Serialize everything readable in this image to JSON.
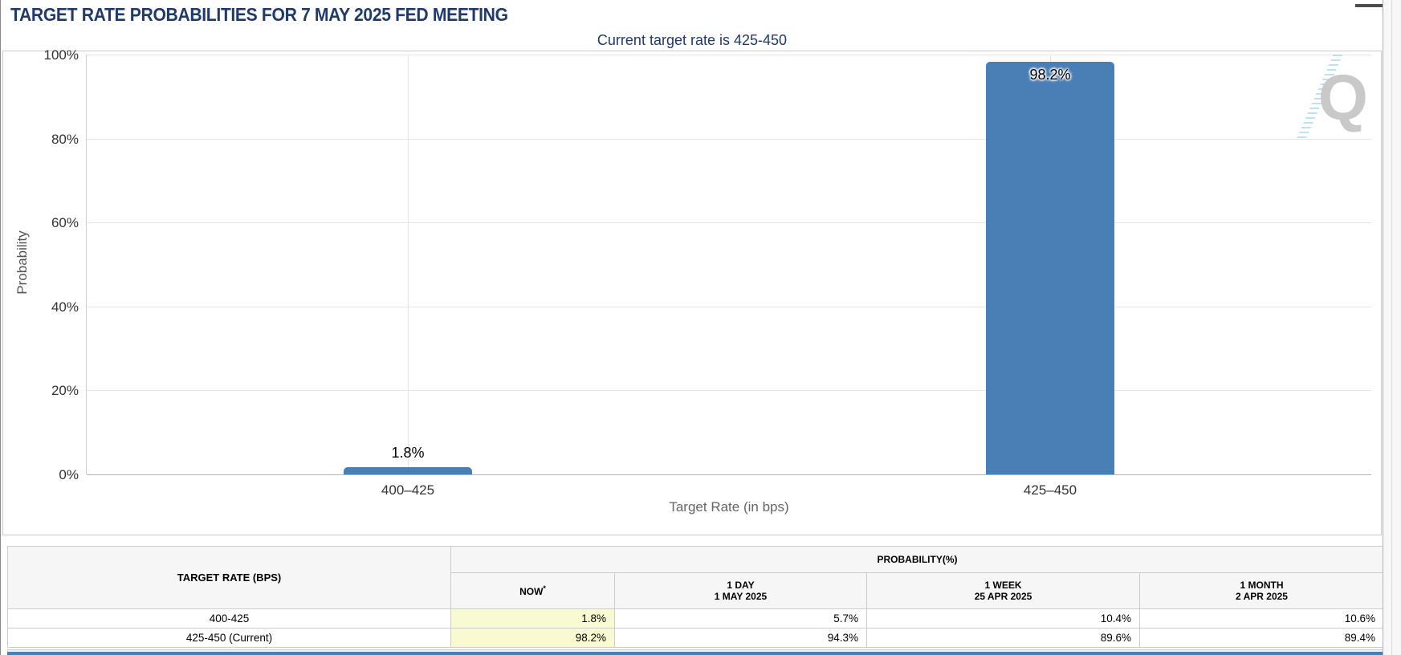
{
  "header": {
    "title": "TARGET RATE PROBABILITIES FOR 7 MAY 2025 FED MEETING"
  },
  "icons": {
    "menu": "hamburger-menu-icon",
    "watermark": "quikstrike-q-watermark"
  },
  "colors": {
    "bar_blue": "#4a7fb6",
    "title_navy": "#203a6d",
    "now_cell_yellow": "#fafad2",
    "header_gray": "#f6f6f6",
    "bottom_bar_blue": "#4a7fb6"
  },
  "chart_data": {
    "type": "bar",
    "subtitle": "Current target rate is 425-450",
    "categories": [
      "400–425",
      "425–450"
    ],
    "values": [
      1.8,
      98.2
    ],
    "value_labels": [
      "1.8%",
      "98.2%"
    ],
    "xlabel": "Target Rate (in bps)",
    "ylabel": "Probability",
    "ylim": [
      0,
      100
    ],
    "ytick_step": 20,
    "ytick_labels": [
      "0%",
      "20%",
      "40%",
      "60%",
      "80%",
      "100%"
    ],
    "grid": true,
    "legend": "none",
    "bar_color": "#4a7fb6",
    "watermark_letter": "Q"
  },
  "table": {
    "rate_header": "TARGET RATE (BPS)",
    "group_header": "PROBABILITY(%)",
    "columns": [
      {
        "label": "NOW",
        "asterisk": true,
        "sub": ""
      },
      {
        "label": "1 DAY",
        "asterisk": false,
        "sub": "1 MAY 2025"
      },
      {
        "label": "1 WEEK",
        "asterisk": false,
        "sub": "25 APR 2025"
      },
      {
        "label": "1 MONTH",
        "asterisk": false,
        "sub": "2 APR 2025"
      }
    ],
    "rows": [
      {
        "target_rate": "400-425",
        "values": [
          "1.8%",
          "5.7%",
          "10.4%",
          "10.6%"
        ]
      },
      {
        "target_rate": "425-450 (Current)",
        "values": [
          "98.2%",
          "94.3%",
          "89.6%",
          "89.4%"
        ]
      }
    ]
  }
}
